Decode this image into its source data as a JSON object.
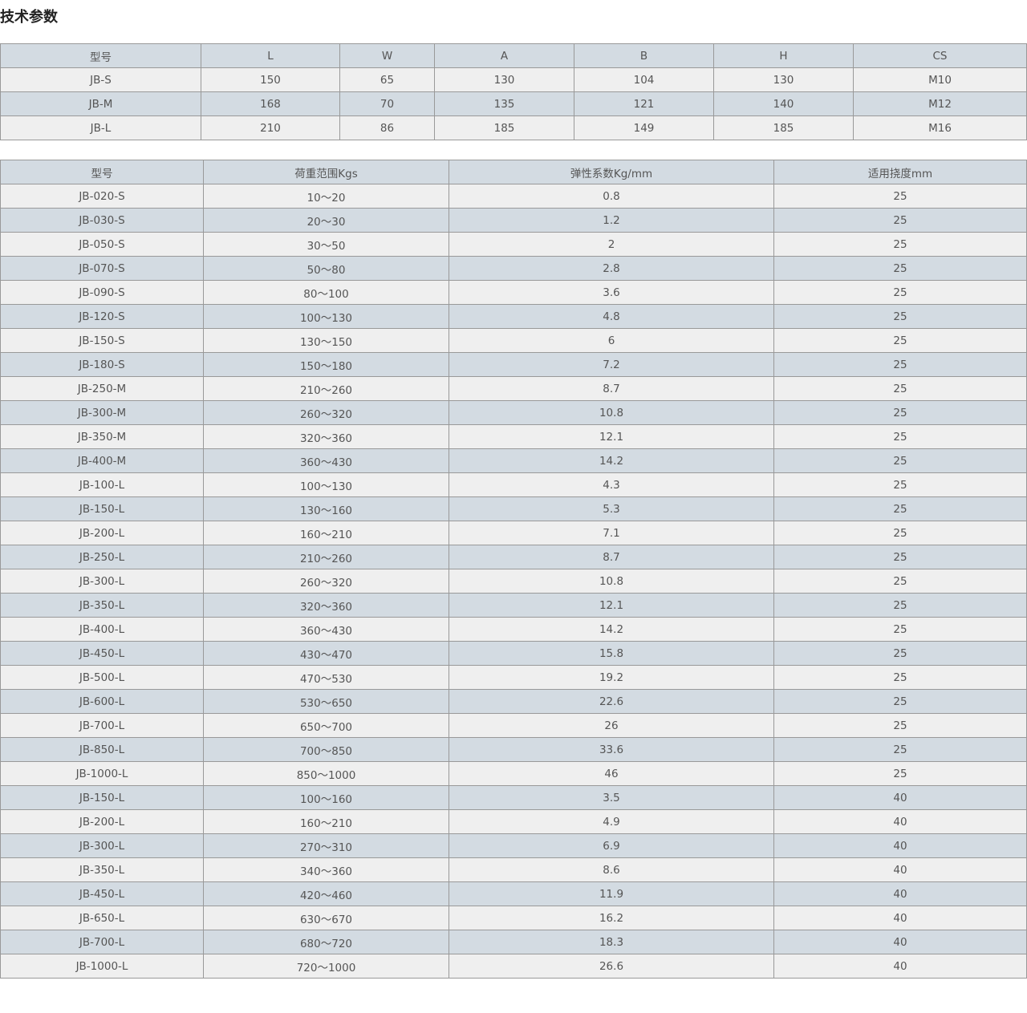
{
  "title": "技术参数",
  "colors": {
    "header_bg": "#d3dbe2",
    "row_alt_bg": "#efefef",
    "border": "#999999",
    "text": "#555555"
  },
  "table1": {
    "headers": [
      "型号",
      "L",
      "W",
      "A",
      "B",
      "H",
      "CS"
    ],
    "rows": [
      [
        "JB-S",
        "150",
        "65",
        "130",
        "104",
        "130",
        "M10"
      ],
      [
        "JB-M",
        "168",
        "70",
        "135",
        "121",
        "140",
        "M12"
      ],
      [
        "JB-L",
        "210",
        "86",
        "185",
        "149",
        "185",
        "M16"
      ]
    ]
  },
  "table2": {
    "headers": [
      "型号",
      "荷重范围Kgs",
      "弹性系数Kg/mm",
      "适用挠度mm"
    ],
    "rows": [
      [
        "JB-020-S",
        "10～20",
        "0.8",
        "25"
      ],
      [
        "JB-030-S",
        "20～30",
        "1.2",
        "25"
      ],
      [
        "JB-050-S",
        "30～50",
        "2",
        "25"
      ],
      [
        "JB-070-S",
        "50～80",
        "2.8",
        "25"
      ],
      [
        "JB-090-S",
        "80～100",
        "3.6",
        "25"
      ],
      [
        "JB-120-S",
        "100～130",
        "4.8",
        "25"
      ],
      [
        "JB-150-S",
        "130～150",
        "6",
        "25"
      ],
      [
        "JB-180-S",
        "150～180",
        "7.2",
        "25"
      ],
      [
        "JB-250-M",
        "210～260",
        "8.7",
        "25"
      ],
      [
        "JB-300-M",
        "260～320",
        "10.8",
        "25"
      ],
      [
        "JB-350-M",
        "320～360",
        "12.1",
        "25"
      ],
      [
        "JB-400-M",
        "360～430",
        "14.2",
        "25"
      ],
      [
        "JB-100-L",
        "100～130",
        "4.3",
        "25"
      ],
      [
        "JB-150-L",
        "130～160",
        "5.3",
        "25"
      ],
      [
        "JB-200-L",
        "160～210",
        "7.1",
        "25"
      ],
      [
        "JB-250-L",
        "210～260",
        "8.7",
        "25"
      ],
      [
        "JB-300-L",
        "260～320",
        "10.8",
        "25"
      ],
      [
        "JB-350-L",
        "320～360",
        "12.1",
        "25"
      ],
      [
        "JB-400-L",
        "360～430",
        "14.2",
        "25"
      ],
      [
        "JB-450-L",
        "430～470",
        "15.8",
        "25"
      ],
      [
        "JB-500-L",
        "470～530",
        "19.2",
        "25"
      ],
      [
        "JB-600-L",
        "530～650",
        "22.6",
        "25"
      ],
      [
        "JB-700-L",
        "650～700",
        "26",
        "25"
      ],
      [
        "JB-850-L",
        "700～850",
        "33.6",
        "25"
      ],
      [
        "JB-1000-L",
        "850～1000",
        "46",
        "25"
      ],
      [
        "JB-150-L",
        "100～160",
        "3.5",
        "40"
      ],
      [
        "JB-200-L",
        "160～210",
        "4.9",
        "40"
      ],
      [
        "JB-300-L",
        "270～310",
        "6.9",
        "40"
      ],
      [
        "JB-350-L",
        "340～360",
        "8.6",
        "40"
      ],
      [
        "JB-450-L",
        "420～460",
        "11.9",
        "40"
      ],
      [
        "JB-650-L",
        "630～670",
        "16.2",
        "40"
      ],
      [
        "JB-700-L",
        "680～720",
        "18.3",
        "40"
      ],
      [
        "JB-1000-L",
        "720～1000",
        "26.6",
        "40"
      ]
    ]
  }
}
